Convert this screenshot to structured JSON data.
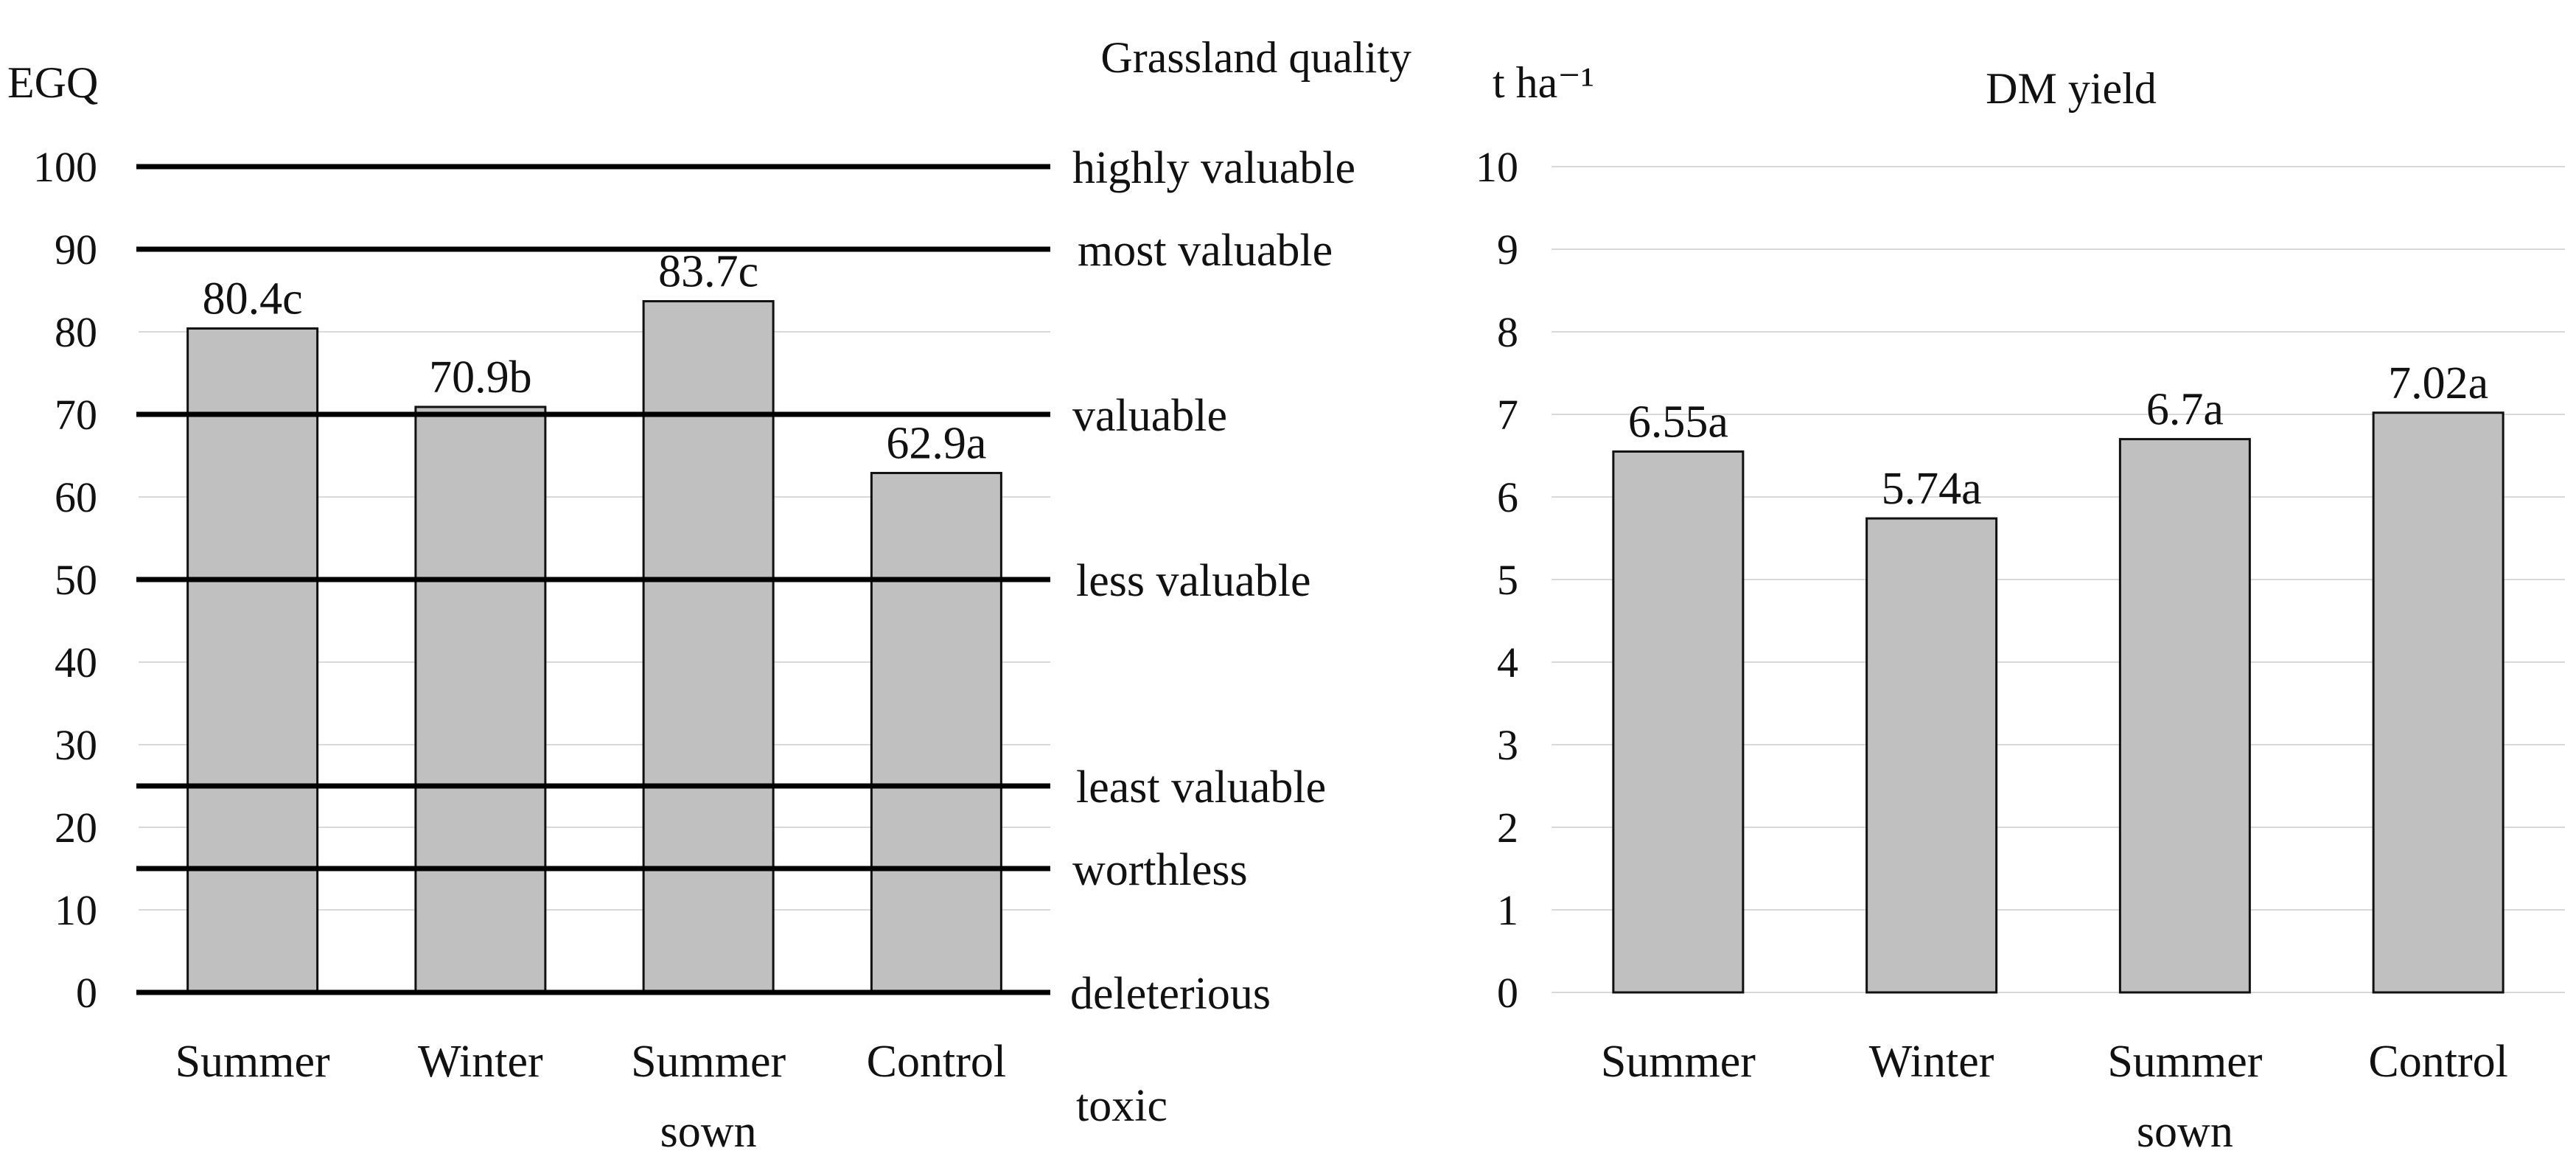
{
  "chart_data": [
    {
      "type": "bar",
      "ylabel": "EGQ",
      "right_axis_title": "Grassland quality",
      "categories": [
        "Summer",
        "Winter",
        "Summer sown",
        "Control"
      ],
      "values": [
        80.4,
        70.9,
        83.7,
        62.9
      ],
      "value_labels": [
        "80.4c",
        "70.9b",
        "83.7c",
        "62.9a"
      ],
      "ylim": [
        0,
        100
      ],
      "yticks": [
        0,
        10,
        20,
        30,
        40,
        50,
        60,
        70,
        80,
        90,
        100
      ],
      "tick_labels": [
        "0",
        "10",
        "20",
        "30",
        "40",
        "50",
        "60",
        "70",
        "80",
        "90",
        "100"
      ],
      "grid": true,
      "quality_classes": [
        {
          "label": "highly valuable",
          "line_value": 100
        },
        {
          "label": "most valuable",
          "line_value": 90
        },
        {
          "label": "valuable",
          "line_value": 70
        },
        {
          "label": "less valuable",
          "line_value": 50
        },
        {
          "label": "least valuable",
          "line_value": 25
        },
        {
          "label": "worthless",
          "line_value": 15
        },
        {
          "label": "deleterious",
          "line_value": 0
        },
        {
          "label": "toxic",
          "line_value": null
        }
      ]
    },
    {
      "type": "bar",
      "ylabel": "t ha⁻¹",
      "title": "DM yield",
      "categories": [
        "Summer",
        "Winter",
        "Summer sown",
        "Control"
      ],
      "values": [
        6.55,
        5.74,
        6.7,
        7.02
      ],
      "value_labels": [
        "6.55a",
        "5.74a",
        "6.7a",
        "7.02a"
      ],
      "ylim": [
        0,
        10
      ],
      "yticks": [
        0,
        1,
        2,
        3,
        4,
        5,
        6,
        7,
        8,
        9,
        10
      ],
      "tick_labels": [
        "0",
        "1",
        "2",
        "3",
        "4",
        "5",
        "6",
        "7",
        "8",
        "9",
        "10"
      ],
      "grid": true
    }
  ],
  "colors": {
    "bar_fill": "#c0c0c0",
    "bar_stroke": "#111111",
    "grid": "#d9d9d9",
    "quality_line": "#000000",
    "text": "#111111"
  }
}
